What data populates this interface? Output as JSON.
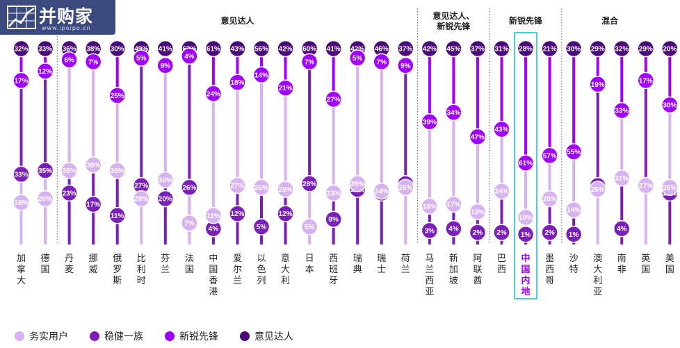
{
  "watermark": {
    "text": "并购家",
    "sub": "www.ipoipo.cn"
  },
  "colors": {
    "务实用户": "#d6b3f0",
    "稳健一族": "#7a1fb8",
    "新锐先锋": "#a000ff",
    "意见达人": "#4a0878",
    "highlight": "#3fd0e4",
    "highlight_text": "#a000ff"
  },
  "chart_data": {
    "type": "dot",
    "groups": [
      {
        "label": "",
        "start": 0,
        "end": 1
      },
      {
        "label": "意见达人",
        "start": 2,
        "end": 16
      },
      {
        "label": "意见达人、\n新锐先锋",
        "start": 17,
        "end": 19
      },
      {
        "label": "新锐先锋",
        "start": 20,
        "end": 22
      },
      {
        "label": "混合",
        "start": 23,
        "end": 26
      }
    ],
    "legend": [
      "务实用户",
      "稳健一族",
      "新锐先锋",
      "意见达人"
    ],
    "highlight_index": 21,
    "countries": [
      {
        "name": "加拿大",
        "values": {
          "意见达人": 32,
          "新锐先锋": 17,
          "稳健一族": 33,
          "务实用户": 18
        }
      },
      {
        "name": "德国",
        "values": {
          "意见达人": 33,
          "新锐先锋": 12,
          "稳健一族": 35,
          "务实用户": 20
        }
      },
      {
        "name": "丹麦",
        "values": {
          "意见达人": 36,
          "新锐先锋": 6,
          "稳健一族": 23,
          "务实用户": 35
        }
      },
      {
        "name": "挪威",
        "values": {
          "意见达人": 38,
          "新锐先锋": 7,
          "稳健一族": 17,
          "务实用户": 38
        }
      },
      {
        "name": "俄罗斯",
        "values": {
          "意见达人": 30,
          "新锐先锋": 25,
          "稳健一族": 11,
          "务实用户": 35
        }
      },
      {
        "name": "比利时",
        "values": {
          "意见达人": 49,
          "新锐先锋": 5,
          "稳健一族": 27,
          "务实用户": 20
        }
      },
      {
        "name": "芬兰",
        "values": {
          "意见达人": 41,
          "新锐先锋": 9,
          "稳健一族": 20,
          "务实用户": 30
        }
      },
      {
        "name": "法国",
        "values": {
          "意见达人": 63,
          "新锐先锋": 4,
          "稳健一族": 26,
          "务实用户": 7
        }
      },
      {
        "name": "中国香港",
        "values": {
          "意见达人": 61,
          "新锐先锋": 24,
          "稳健一族": 4,
          "务实用户": 11
        }
      },
      {
        "name": "爱尔兰",
        "values": {
          "意见达人": 43,
          "新锐先锋": 18,
          "稳健一族": 12,
          "务实用户": 27
        }
      },
      {
        "name": "以色列",
        "values": {
          "意见达人": 56,
          "新锐先锋": 14,
          "稳健一族": 5,
          "务实用户": 26
        }
      },
      {
        "name": "意大利",
        "values": {
          "意见达人": 42,
          "新锐先锋": 21,
          "稳健一族": 12,
          "务实用户": 25
        }
      },
      {
        "name": "日本",
        "values": {
          "意见达人": 60,
          "新锐先锋": 7,
          "稳健一族": 28,
          "务实用户": 5
        }
      },
      {
        "name": "西班牙",
        "values": {
          "意见达人": 41,
          "新锐先锋": 27,
          "稳健一族": 9,
          "务实用户": 23
        }
      },
      {
        "name": "瑞典",
        "values": {
          "意见达人": 42,
          "新锐先锋": 5,
          "稳健一族": 25,
          "务实用户": 28
        }
      },
      {
        "name": "瑞士",
        "values": {
          "意见达人": 46,
          "新锐先锋": 7,
          "稳健一族": 23,
          "务实用户": 24
        }
      },
      {
        "name": "荷兰",
        "values": {
          "意见达人": 37,
          "新锐先锋": 9,
          "稳健一族": 28,
          "务实用户": 26
        }
      },
      {
        "name": "马兰西亚",
        "values": {
          "意见达人": 42,
          "新锐先锋": 39,
          "稳健一族": 3,
          "务实用户": 16
        }
      },
      {
        "name": "新加坡",
        "values": {
          "意见达人": 45,
          "新锐先锋": 34,
          "稳健一族": 4,
          "务实用户": 17
        }
      },
      {
        "name": "阿联酋",
        "values": {
          "意见达人": 37,
          "新锐先锋": 47,
          "稳健一族": 2,
          "务实用户": 13
        }
      },
      {
        "name": "巴西",
        "values": {
          "意见达人": 31,
          "新锐先锋": 43,
          "稳健一族": 2,
          "务实用户": 24
        }
      },
      {
        "name": "中国内地",
        "values": {
          "意见达人": 28,
          "新锐先锋": 61,
          "稳健一族": 1,
          "务实用户": 10
        }
      },
      {
        "name": "墨西哥",
        "values": {
          "意见达人": 21,
          "新锐先锋": 57,
          "稳健一族": 2,
          "务实用户": 20
        }
      },
      {
        "name": "沙特",
        "values": {
          "意见达人": 30,
          "新锐先锋": 55,
          "稳健一族": 1,
          "务实用户": 14
        }
      },
      {
        "name": "澳大利亚",
        "values": {
          "意见达人": 29,
          "新锐先锋": 19,
          "稳健一族": 27,
          "务实用户": 25
        }
      },
      {
        "name": "南非",
        "values": {
          "意见达人": 32,
          "新锐先锋": 33,
          "稳健一族": 4,
          "务实用户": 31
        }
      },
      {
        "name": "英国",
        "values": {
          "意见达人": 29,
          "新锐先锋": 17,
          "稳健一族": 27,
          "务实用户": 27
        }
      },
      {
        "name": "美国",
        "values": {
          "意见达人": 20,
          "新锐先锋": 30,
          "稳健一族": 23,
          "务实用户": 26
        }
      }
    ]
  }
}
